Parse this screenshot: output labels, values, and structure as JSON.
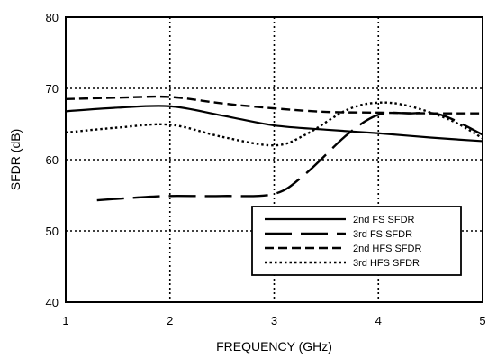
{
  "chart_data": {
    "type": "line",
    "title": "",
    "xlabel": "FREQUENCY (GHz)",
    "ylabel": "SFDR (dB)",
    "xlim": [
      1,
      5
    ],
    "ylim": [
      40,
      80
    ],
    "x_ticks": [
      1,
      2,
      3,
      4,
      5
    ],
    "y_ticks": [
      40,
      50,
      60,
      70,
      80
    ],
    "x_tick_labels": [
      "1",
      "2",
      "3",
      "4",
      "5"
    ],
    "y_tick_labels": [
      "40",
      "50",
      "60",
      "70",
      "80"
    ],
    "grid": "dotted",
    "legend_position": "bottom-right",
    "series": [
      {
        "name": "2nd FS SFDR",
        "style": "solid",
        "x": [
          1.0,
          1.5,
          2.0,
          2.5,
          3.0,
          3.5,
          4.0,
          4.5,
          5.0
        ],
        "y": [
          66.8,
          67.3,
          67.5,
          66.2,
          64.8,
          64.2,
          63.7,
          63.1,
          62.6
        ]
      },
      {
        "name": "3rd FS SFDR",
        "style": "long-dash",
        "x": [
          1.3,
          1.7,
          2.0,
          2.5,
          3.0,
          3.3,
          3.7,
          4.0,
          4.3,
          4.6,
          5.0
        ],
        "y": [
          54.3,
          54.7,
          54.9,
          54.9,
          55.2,
          58.0,
          63.5,
          66.3,
          66.5,
          66.3,
          63.5
        ]
      },
      {
        "name": "2nd HFS SFDR",
        "style": "dash",
        "x": [
          1.0,
          1.5,
          2.0,
          2.5,
          3.0,
          3.5,
          4.0,
          4.5,
          5.0
        ],
        "y": [
          68.5,
          68.7,
          68.8,
          67.9,
          67.2,
          66.7,
          66.6,
          66.5,
          66.5
        ]
      },
      {
        "name": "3rd HFS SFDR",
        "style": "dotted",
        "x": [
          1.0,
          1.5,
          2.0,
          2.5,
          3.0,
          3.3,
          3.7,
          4.0,
          4.3,
          4.7,
          5.0
        ],
        "y": [
          63.8,
          64.5,
          64.9,
          63.2,
          62.0,
          63.5,
          67.0,
          68.0,
          67.5,
          65.5,
          63.0
        ]
      }
    ]
  }
}
